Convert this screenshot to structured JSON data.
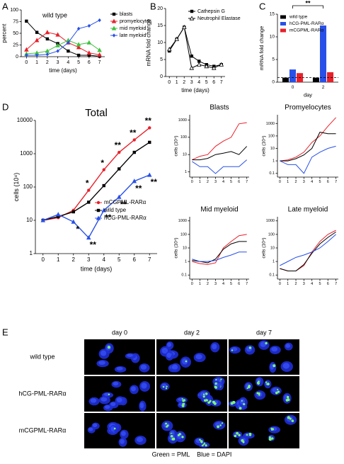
{
  "panel_labels": [
    "A",
    "B",
    "C",
    "D",
    "E"
  ],
  "chart_data": [
    {
      "type": "line",
      "title": "wild type",
      "xlabel": "time (days)",
      "ylabel": "percent",
      "x": [
        0,
        1,
        2,
        3,
        4,
        5,
        6,
        7
      ],
      "xlim": [
        -0.5,
        7.5
      ],
      "xticks": [
        0,
        1,
        2,
        3,
        4,
        5,
        6,
        7
      ],
      "ylim": [
        0,
        100
      ],
      "yticks": [
        0,
        25,
        50,
        75,
        100
      ],
      "legend": "right",
      "series": [
        {
          "name": "blasts",
          "color": "#000000",
          "marker": "square",
          "values": [
            76,
            52,
            38,
            28,
            12,
            3,
            3,
            1
          ]
        },
        {
          "name": "promyelocytes",
          "color": "#e8202a",
          "marker": "triangle",
          "values": [
            15,
            35,
            52,
            47,
            30,
            20,
            8,
            4
          ]
        },
        {
          "name": "mid myeloid",
          "color": "#40c040",
          "marker": "triangle",
          "values": [
            6,
            8,
            12,
            24,
            35,
            26,
            30,
            14
          ]
        },
        {
          "name": "late myeloid",
          "color": "#2850e8",
          "marker": "diamond",
          "values": [
            3,
            3,
            5,
            12,
            30,
            60,
            66,
            78
          ]
        }
      ]
    },
    {
      "type": "line",
      "xlabel": "time (days)",
      "ylabel": "mRNA fold change",
      "x": [
        0,
        1,
        2,
        3,
        4,
        5,
        6,
        7
      ],
      "xlim": [
        -0.5,
        7.5
      ],
      "xticks": [
        0,
        1,
        2,
        3,
        4,
        5,
        6,
        7
      ],
      "ylim": [
        0,
        20
      ],
      "yticks": [
        0,
        5,
        10,
        15,
        20
      ],
      "legend": "upper right",
      "series": [
        {
          "name": "Cathepsin G",
          "color": "#000000",
          "marker": "square",
          "values": [
            7.5,
            11,
            14.5,
            6,
            4.5,
            3.5,
            3,
            3.5
          ]
        },
        {
          "name": "Neutrophil Elastase",
          "color": "#000000",
          "marker": "triangle-open",
          "values": [
            8,
            11,
            14.5,
            2.5,
            3.5,
            3,
            2.5,
            3.5
          ]
        }
      ]
    },
    {
      "type": "bar",
      "xlabel": "day",
      "ylabel": "mRNA fold change",
      "categories": [
        "0",
        "2"
      ],
      "ylim": [
        0,
        15
      ],
      "yticks": [
        0,
        5,
        10,
        15
      ],
      "legend": "upper left",
      "ref_line": 1,
      "bracket": {
        "text": "**"
      },
      "series": [
        {
          "name": "wild type",
          "color": "#000000",
          "values": [
            1,
            1
          ]
        },
        {
          "name": "hCG-PML-RARα",
          "color": "#2850e8",
          "values": [
            2.8,
            12.5
          ]
        },
        {
          "name": "mCGPML-RARα",
          "color": "#e8202a",
          "values": [
            2,
            2.2
          ]
        }
      ]
    },
    {
      "type": "line",
      "title": "Total",
      "xlabel": "time (days)",
      "ylabel": "cells (10⁴)",
      "x": [
        0,
        1,
        2,
        3,
        4,
        5,
        6,
        7
      ],
      "xlim": [
        -0.5,
        7.5
      ],
      "xticks": [
        0,
        1,
        2,
        3,
        4,
        5,
        6,
        7
      ],
      "log_y": true,
      "ylim": [
        1,
        10000
      ],
      "yticks": [
        1,
        10,
        100,
        1000,
        10000
      ],
      "legend": "lower right",
      "series": [
        {
          "name": "mCGPML-RARα",
          "color": "#e8202a",
          "marker": "circle",
          "values": [
            10,
            12,
            20,
            80,
            330,
            1100,
            2600,
            6000
          ]
        },
        {
          "name": "wild type",
          "color": "#000000",
          "marker": "square",
          "values": [
            10,
            13,
            18,
            35,
            110,
            350,
            1100,
            2200
          ]
        },
        {
          "name": "hCG-PML-RARα",
          "color": "#2850e8",
          "marker": "triangle",
          "values": [
            10,
            15,
            9,
            3,
            20,
            50,
            150,
            230
          ]
        }
      ],
      "annotations": [
        {
          "text": "*",
          "series": 0,
          "point": 3,
          "side": "above"
        },
        {
          "text": "*",
          "series": 0,
          "point": 4,
          "side": "above"
        },
        {
          "text": "**",
          "series": 0,
          "point": 5,
          "side": "above"
        },
        {
          "text": "**",
          "series": 0,
          "point": 6,
          "side": "above"
        },
        {
          "text": "**",
          "series": 0,
          "point": 7,
          "side": "above"
        },
        {
          "text": "*",
          "series": 2,
          "point": 2,
          "side": "below"
        },
        {
          "text": "**",
          "series": 2,
          "point": 3,
          "side": "below"
        },
        {
          "text": "**",
          "series": 2,
          "point": 4,
          "side": "below"
        },
        {
          "text": "**",
          "series": 2,
          "point": 5,
          "side": "below"
        },
        {
          "text": "**",
          "series": 2,
          "point": 6,
          "side": "below"
        },
        {
          "text": "**",
          "series": 2,
          "point": 7,
          "side": "below"
        }
      ]
    },
    {
      "type": "line",
      "title": "Blasts",
      "ylabel": "cells (10⁴)",
      "x": [
        0,
        1,
        2,
        3,
        4,
        5,
        6,
        7
      ],
      "xlim": [
        -0.3,
        7.3
      ],
      "xticks": [
        0,
        1,
        2,
        3,
        4,
        5,
        6,
        7
      ],
      "log_y": true,
      "ylim": [
        0.5,
        2000
      ],
      "yticks": [
        1,
        10,
        100,
        1000
      ],
      "series": [
        {
          "color": "#e8202a",
          "values": [
            5,
            8,
            10,
            30,
            60,
            100,
            600,
            700
          ]
        },
        {
          "color": "#000000",
          "values": [
            5,
            5,
            6,
            10,
            12,
            15,
            10,
            30
          ]
        },
        {
          "color": "#2850e8",
          "values": [
            4,
            2,
            2,
            0.8,
            2,
            2,
            2,
            5
          ]
        }
      ]
    },
    {
      "type": "line",
      "title": "Promyelocytes",
      "ylabel": "cells (10⁴)",
      "x": [
        0,
        1,
        2,
        3,
        4,
        5,
        6,
        7
      ],
      "xlim": [
        -0.3,
        7.3
      ],
      "xticks": [
        0,
        1,
        2,
        3,
        4,
        5,
        6,
        7
      ],
      "log_y": true,
      "ylim": [
        0.05,
        5000
      ],
      "yticks": [
        0.1,
        1,
        10,
        100,
        1000
      ],
      "series": [
        {
          "color": "#e8202a",
          "values": [
            1,
            1.2,
            2,
            5,
            30,
            100,
            600,
            3000
          ]
        },
        {
          "color": "#000000",
          "values": [
            1,
            1,
            1.5,
            3,
            10,
            200,
            150,
            150
          ]
        },
        {
          "color": "#2850e8",
          "values": [
            1,
            0.5,
            0.5,
            0.1,
            2,
            5,
            10,
            15
          ]
        }
      ]
    },
    {
      "type": "line",
      "title": "Mid myeloid",
      "ylabel": "cells (10⁴)",
      "x": [
        0,
        1,
        2,
        3,
        4,
        5,
        6,
        7
      ],
      "xlim": [
        -0.3,
        7.3
      ],
      "xticks": [
        0,
        1,
        2,
        3,
        4,
        5,
        6,
        7
      ],
      "log_y": true,
      "ylim": [
        0.05,
        2000
      ],
      "yticks": [
        0.1,
        1,
        10,
        100,
        1000
      ],
      "series": [
        {
          "color": "#e8202a",
          "values": [
            1,
            0.7,
            0.6,
            0.8,
            10,
            30,
            80,
            100
          ]
        },
        {
          "color": "#000000",
          "values": [
            1.2,
            1,
            0.8,
            1.5,
            8,
            20,
            30,
            30
          ]
        },
        {
          "color": "#2850e8",
          "values": [
            1.5,
            1,
            1,
            1.2,
            2,
            3,
            5,
            5
          ]
        }
      ]
    },
    {
      "type": "line",
      "title": "Late myeloid",
      "ylabel": "cells (10⁴)",
      "x": [
        0,
        1,
        2,
        3,
        4,
        5,
        6,
        7
      ],
      "xlim": [
        -0.3,
        7.3
      ],
      "xticks": [
        0,
        1,
        2,
        3,
        4,
        5,
        6,
        7
      ],
      "log_y": true,
      "ylim": [
        0.05,
        2000
      ],
      "yticks": [
        0.1,
        1,
        10,
        100,
        1000
      ],
      "series": [
        {
          "color": "#e8202a",
          "values": [
            0.3,
            0.2,
            0.2,
            0.5,
            5,
            30,
            100,
            200
          ]
        },
        {
          "color": "#000000",
          "values": [
            0.3,
            0.2,
            0.2,
            0.6,
            4,
            20,
            60,
            150
          ]
        },
        {
          "color": "#2850e8",
          "values": [
            0.5,
            1,
            2,
            3,
            5,
            10,
            30,
            100
          ]
        }
      ]
    }
  ],
  "image_grid": {
    "columns": [
      "day 0",
      "day 2",
      "day 7"
    ],
    "rows": [
      "wild type",
      "hCG-PML-RARα",
      "mCGPML-RARα"
    ],
    "caption": "Green = PML    Blue = DAPI"
  }
}
